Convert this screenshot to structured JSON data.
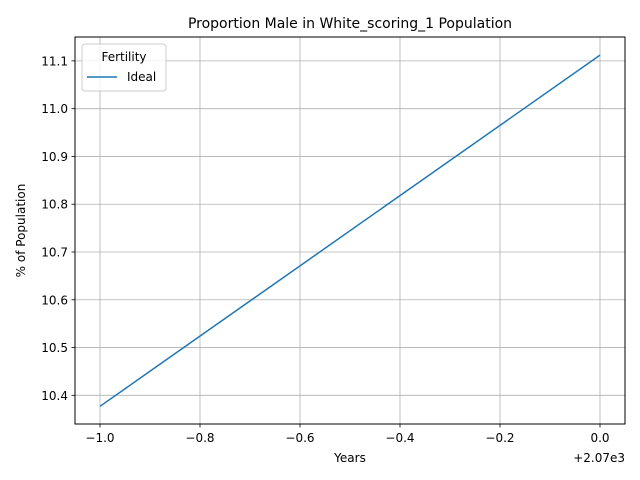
{
  "chart_data": {
    "type": "line",
    "title": "Proportion Male in White_scoring_1 Population",
    "xlabel": "Years",
    "ylabel": "% of Population",
    "x_offset_label": "+2.07e3",
    "x_ticks": [
      "−1.0",
      "−0.8",
      "−0.6",
      "−0.4",
      "−0.2",
      "0.0"
    ],
    "y_ticks": [
      "10.4",
      "10.5",
      "10.6",
      "10.7",
      "10.8",
      "10.9",
      "11.0",
      "11.1"
    ],
    "xlim": [
      2068.95,
      2070.05
    ],
    "ylim": [
      10.34,
      11.15
    ],
    "grid": true,
    "legend": {
      "title": "Fertility",
      "placement": "top-left"
    },
    "series": [
      {
        "name": "Ideal",
        "color": "#1f77b4",
        "x": [
          2069,
          2070
        ],
        "y": [
          10.377,
          11.112
        ]
      }
    ]
  }
}
